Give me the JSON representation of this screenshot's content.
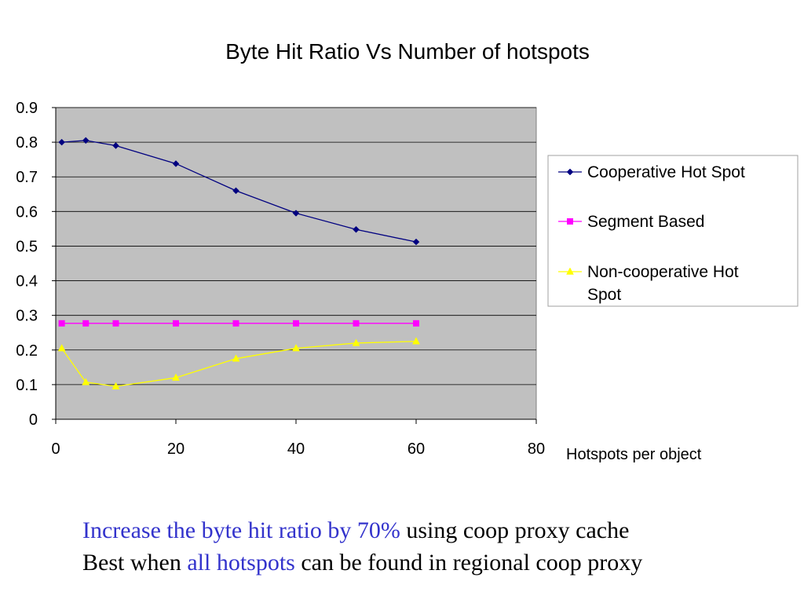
{
  "chart_data": {
    "type": "line",
    "title": "Byte Hit Ratio Vs Number of hotspots",
    "xlabel": "Hotspots per object",
    "ylabel": "",
    "xlim": [
      0,
      80
    ],
    "ylim": [
      0,
      0.9
    ],
    "x_ticks": [
      "0",
      "20",
      "40",
      "60",
      "80"
    ],
    "y_ticks": [
      "0",
      "0.1",
      "0.2",
      "0.3",
      "0.4",
      "0.5",
      "0.6",
      "0.7",
      "0.8",
      "0.9"
    ],
    "grid": "horizontal",
    "plot_background": "#c0c0c0",
    "legend_position": "right",
    "x": [
      1,
      5,
      10,
      20,
      30,
      40,
      50,
      60
    ],
    "series": [
      {
        "name": "Cooperative Hot Spot",
        "color": "#000080",
        "marker": "diamond",
        "values": [
          0.8,
          0.805,
          0.79,
          0.738,
          0.66,
          0.595,
          0.548,
          0.512
        ]
      },
      {
        "name": "Segment Based",
        "color": "#ff00ff",
        "marker": "square",
        "values": [
          0.277,
          0.277,
          0.277,
          0.277,
          0.277,
          0.277,
          0.277,
          0.277
        ]
      },
      {
        "name": "Non-cooperative Hot Spot",
        "color": "#ffff00",
        "marker": "triangle",
        "values": [
          0.205,
          0.107,
          0.095,
          0.12,
          0.175,
          0.205,
          0.22,
          0.225
        ]
      }
    ]
  },
  "notes": {
    "line1_highlight": "Increase the byte hit ratio by 70%",
    "line1_rest": " using coop proxy cache",
    "line2_start": "Best when ",
    "line2_highlight": "all hotspots",
    "line2_rest": " can be found in regional coop proxy"
  }
}
